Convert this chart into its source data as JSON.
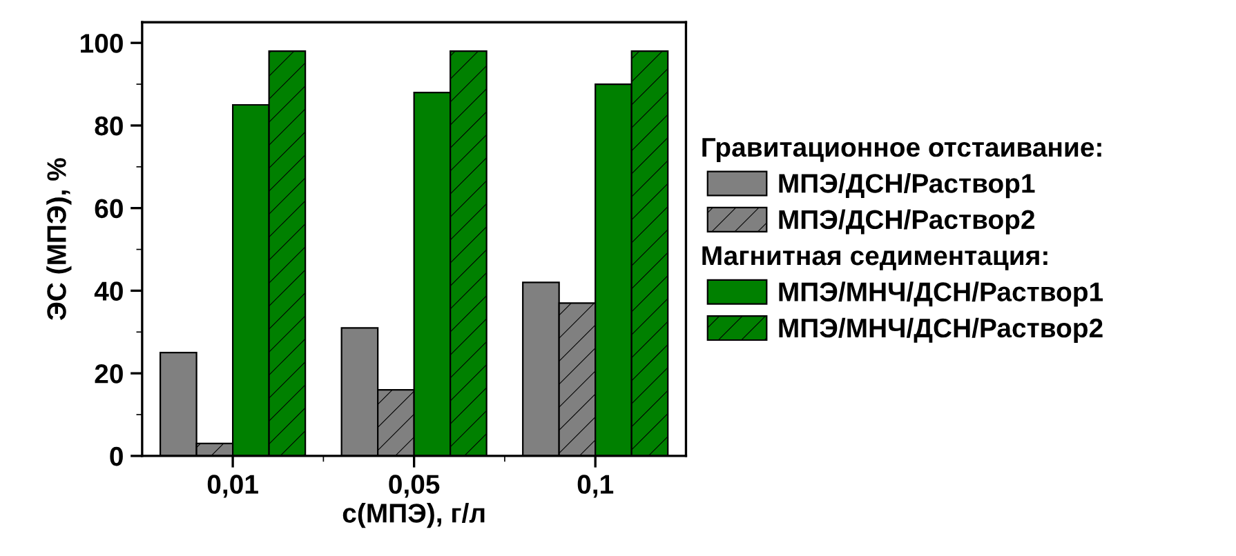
{
  "chart_data": {
    "type": "bar",
    "categories": [
      "0,01",
      "0,05",
      "0,1"
    ],
    "xlabel": "c(МПЭ), г/л",
    "ylabel": "ЭС (МПЭ), %",
    "ylim": [
      0,
      105
    ],
    "yticks": [
      0,
      20,
      40,
      60,
      80,
      100
    ],
    "annotations": [
      "Гравитационное отстаивание:",
      "Магнитная седиментация:"
    ],
    "series": [
      {
        "name": "МПЭ/ДСН/Раствор1",
        "color": "#808080",
        "values": [
          25,
          31,
          42
        ]
      },
      {
        "name": "МПЭ/ДСН/Раствор2",
        "color": "#808080",
        "values": [
          3,
          16,
          37
        ]
      },
      {
        "name": "МПЭ/МНЧ/ДСН/Раствор1",
        "color": "#008000",
        "values": [
          85,
          88,
          90
        ]
      },
      {
        "name": "МПЭ/МНЧ/ДСН/Раствор2",
        "color": "#008000",
        "values": [
          98,
          98,
          98
        ]
      }
    ],
    "grid": false,
    "legend": "right"
  }
}
